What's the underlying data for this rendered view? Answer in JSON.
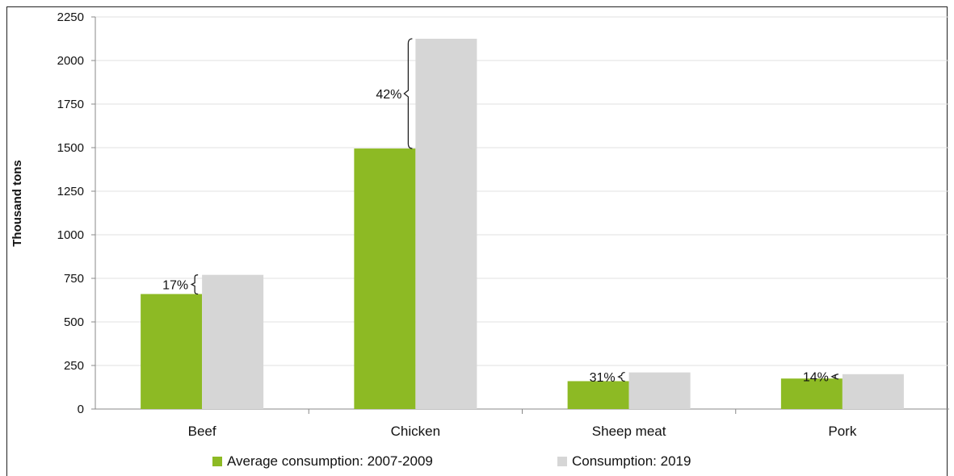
{
  "chart_data": {
    "type": "bar",
    "title": "",
    "xlabel": "",
    "ylabel": "Thousand tons",
    "ylim": [
      0,
      2250
    ],
    "yticks": [
      0,
      250,
      500,
      750,
      1000,
      1250,
      1500,
      1750,
      2000,
      2250
    ],
    "grid": true,
    "legend_position": "bottom",
    "categories": [
      "Beef",
      "Chicken",
      "Sheep meat",
      "Pork"
    ],
    "series": [
      {
        "name": "Average consumption: 2007-2009",
        "color": "#8dba24",
        "values": [
          660,
          1495,
          160,
          175
        ]
      },
      {
        "name": "Consumption: 2019",
        "color": "#d6d6d6",
        "values": [
          770,
          2125,
          210,
          200
        ]
      }
    ],
    "annotations": [
      "17%",
      "42%",
      "31%",
      "14%"
    ]
  }
}
